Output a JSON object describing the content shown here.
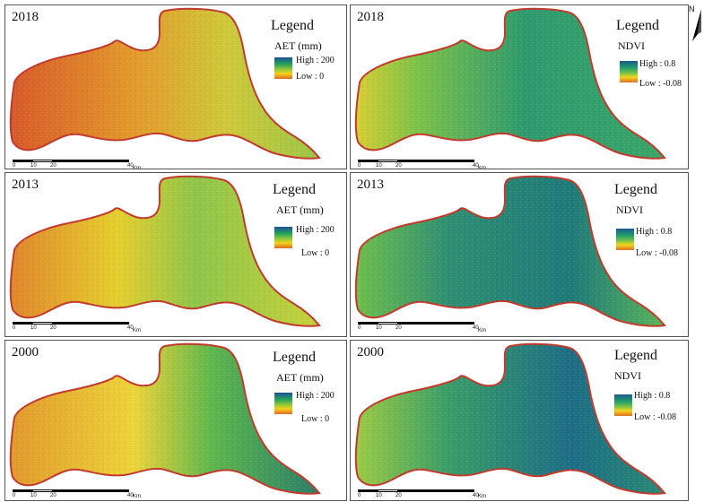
{
  "legend_title": "Legend",
  "north_label": "N",
  "scale": {
    "ticks": [
      "0",
      "10",
      "20",
      "40"
    ],
    "unit": "Km"
  },
  "aet": {
    "variable": "AET (mm)",
    "high": "High : 200",
    "low": "Low : 0"
  },
  "ndvi": {
    "variable": "NDVI",
    "high": "High : 0.8",
    "low": "Low : -0.08"
  },
  "panels": [
    {
      "year": "2018",
      "variable": "AET"
    },
    {
      "year": "2018",
      "variable": "NDVI"
    },
    {
      "year": "2013",
      "variable": "AET"
    },
    {
      "year": "2013",
      "variable": "NDVI"
    },
    {
      "year": "2000",
      "variable": "AET"
    },
    {
      "year": "2000",
      "variable": "NDVI"
    }
  ],
  "colors": {
    "boundary": "#c23a2c",
    "aet_ramp": [
      "#1c4f9b",
      "#22a05a",
      "#8cc63f",
      "#f2d21b",
      "#e06a25"
    ],
    "ndvi_ramp": [
      "#1c5a8f",
      "#1e9a6a",
      "#6ec24a",
      "#f1d51b",
      "#e07026"
    ]
  }
}
